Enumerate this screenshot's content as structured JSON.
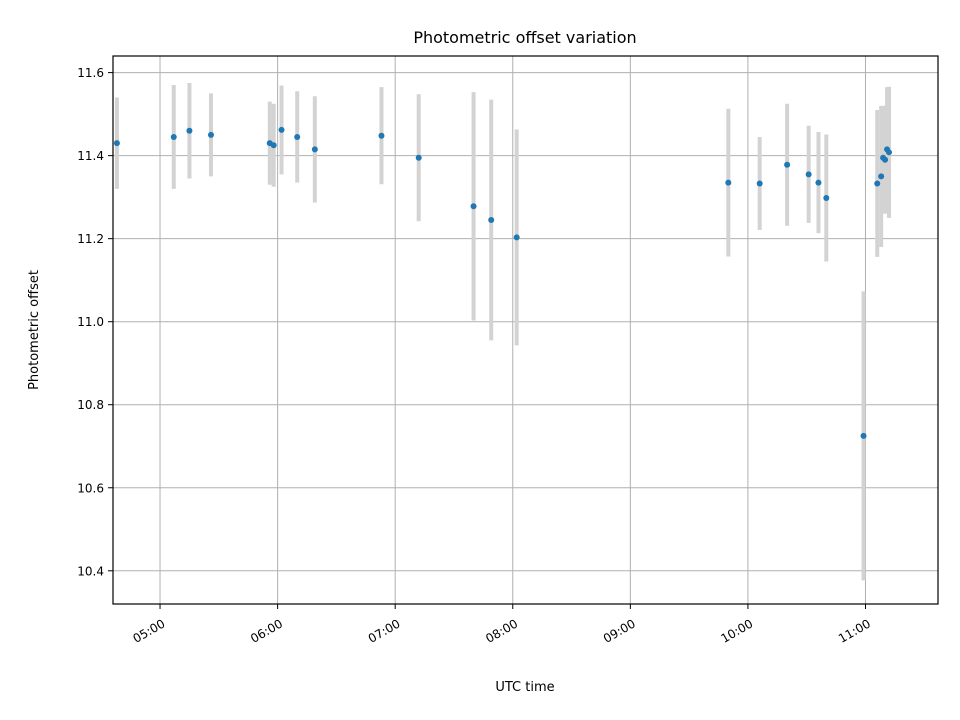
{
  "chart_data": {
    "type": "scatter",
    "title": "Photometric offset variation",
    "xlabel": "UTC time",
    "ylabel": "Photometric offset",
    "x_tick_labels": [
      "05:00",
      "06:00",
      "07:00",
      "08:00",
      "09:00",
      "10:00",
      "11:00"
    ],
    "y_tick_labels": [
      "10.4",
      "10.6",
      "10.8",
      "11.0",
      "11.2",
      "11.4",
      "11.6"
    ],
    "xlim": [
      "04:36",
      "11:37"
    ],
    "ylim": [
      10.32,
      11.64
    ],
    "grid": true,
    "colors": {
      "point": "#1f77b4",
      "errorbar": "#d3d3d3",
      "grid": "#b0b0b0"
    },
    "series": [
      {
        "x": [
          "04:38",
          "05:07",
          "05:15",
          "05:26",
          "05:56",
          "05:58",
          "06:02",
          "06:10",
          "06:19",
          "06:53",
          "07:12",
          "07:40",
          "07:49",
          "08:02",
          "09:50",
          "10:06",
          "10:20",
          "10:31",
          "10:36",
          "10:40",
          "10:59",
          "11:06",
          "11:08",
          "11:09",
          "11:10",
          "11:11",
          "11:12"
        ],
        "y": [
          11.43,
          11.445,
          11.46,
          11.45,
          11.43,
          11.425,
          11.462,
          11.445,
          11.415,
          11.448,
          11.395,
          11.278,
          11.245,
          11.203,
          11.335,
          11.333,
          11.378,
          11.355,
          11.335,
          11.298,
          10.725,
          11.333,
          11.35,
          11.395,
          11.39,
          11.415,
          11.408
        ],
        "yerr": [
          0.11,
          0.125,
          0.115,
          0.1,
          0.1,
          0.1,
          0.107,
          0.11,
          0.128,
          0.117,
          0.153,
          0.275,
          0.29,
          0.26,
          0.178,
          0.112,
          0.147,
          0.117,
          0.122,
          0.153,
          0.348,
          0.177,
          0.17,
          0.125,
          0.13,
          0.15,
          0.158
        ]
      }
    ]
  }
}
